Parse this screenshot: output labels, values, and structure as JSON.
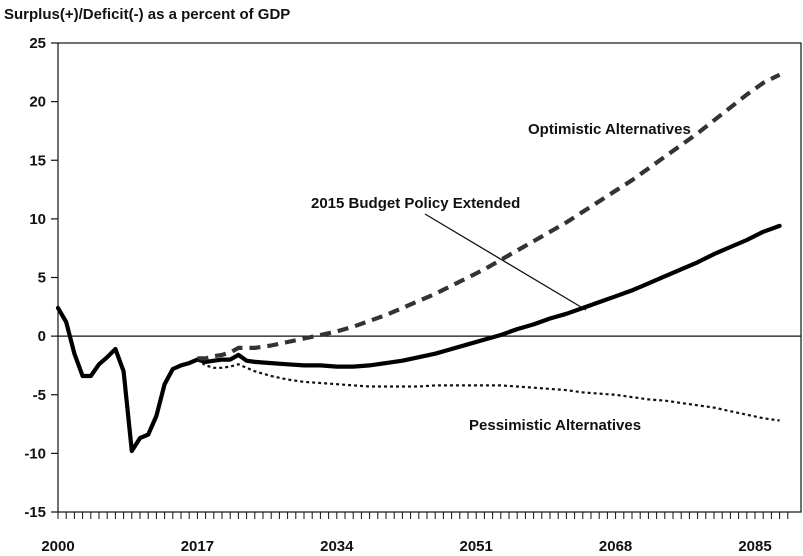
{
  "chart_data": {
    "type": "line",
    "title": "Surplus(+)/Deficit(-) as a percent of GDP",
    "xlabel": "",
    "ylabel": "",
    "xlim": [
      2000,
      2089
    ],
    "ylim": [
      -15,
      25
    ],
    "yticks": [
      25,
      20,
      15,
      10,
      5,
      0,
      -5,
      -10,
      -15
    ],
    "xtick_labels": [
      2000,
      2017,
      2034,
      2051,
      2068,
      2085
    ],
    "minor_xtick_step": 1,
    "zero_line": true,
    "grid": false,
    "legend": "none",
    "annotations": [
      {
        "text": "Optimistic Alternatives"
      },
      {
        "text": "2015 Budget Policy Extended"
      },
      {
        "text": "Pessimistic Alternatives"
      }
    ],
    "series": [
      {
        "id": "budget_policy_extended",
        "style": "solid-thick",
        "color": "#000000",
        "points": [
          [
            2000,
            2.4
          ],
          [
            2001,
            1.2
          ],
          [
            2002,
            -1.5
          ],
          [
            2003,
            -3.4
          ],
          [
            2004,
            -3.4
          ],
          [
            2005,
            -2.4
          ],
          [
            2006,
            -1.8
          ],
          [
            2007,
            -1.1
          ],
          [
            2008,
            -3.0
          ],
          [
            2009,
            -9.8
          ],
          [
            2010,
            -8.7
          ],
          [
            2011,
            -8.4
          ],
          [
            2012,
            -6.8
          ],
          [
            2013,
            -4.1
          ],
          [
            2014,
            -2.8
          ],
          [
            2015,
            -2.5
          ],
          [
            2016,
            -2.3
          ],
          [
            2017,
            -2.0
          ],
          [
            2018,
            -2.2
          ],
          [
            2019,
            -2.1
          ],
          [
            2020,
            -2.0
          ],
          [
            2021,
            -2.0
          ],
          [
            2022,
            -1.6
          ],
          [
            2023,
            -2.1
          ],
          [
            2024,
            -2.2
          ],
          [
            2026,
            -2.3
          ],
          [
            2028,
            -2.4
          ],
          [
            2030,
            -2.5
          ],
          [
            2032,
            -2.5
          ],
          [
            2034,
            -2.6
          ],
          [
            2036,
            -2.6
          ],
          [
            2038,
            -2.5
          ],
          [
            2040,
            -2.3
          ],
          [
            2042,
            -2.1
          ],
          [
            2044,
            -1.8
          ],
          [
            2046,
            -1.5
          ],
          [
            2048,
            -1.1
          ],
          [
            2050,
            -0.7
          ],
          [
            2052,
            -0.3
          ],
          [
            2054,
            0.1
          ],
          [
            2056,
            0.6
          ],
          [
            2058,
            1.0
          ],
          [
            2060,
            1.5
          ],
          [
            2062,
            1.9
          ],
          [
            2064,
            2.4
          ],
          [
            2066,
            2.9
          ],
          [
            2068,
            3.4
          ],
          [
            2070,
            3.9
          ],
          [
            2072,
            4.5
          ],
          [
            2074,
            5.1
          ],
          [
            2076,
            5.7
          ],
          [
            2078,
            6.3
          ],
          [
            2080,
            7.0
          ],
          [
            2082,
            7.6
          ],
          [
            2084,
            8.2
          ],
          [
            2086,
            8.9
          ],
          [
            2088,
            9.4
          ]
        ]
      },
      {
        "id": "optimistic_alternatives",
        "style": "dashed-thick",
        "color": "#333333",
        "points": [
          [
            2017,
            -1.9
          ],
          [
            2018,
            -1.9
          ],
          [
            2019,
            -1.7
          ],
          [
            2020,
            -1.6
          ],
          [
            2021,
            -1.4
          ],
          [
            2022,
            -1.0
          ],
          [
            2024,
            -1.0
          ],
          [
            2026,
            -0.8
          ],
          [
            2028,
            -0.5
          ],
          [
            2030,
            -0.2
          ],
          [
            2032,
            0.1
          ],
          [
            2034,
            0.4
          ],
          [
            2036,
            0.8
          ],
          [
            2038,
            1.3
          ],
          [
            2040,
            1.8
          ],
          [
            2042,
            2.4
          ],
          [
            2044,
            3.0
          ],
          [
            2046,
            3.6
          ],
          [
            2048,
            4.3
          ],
          [
            2050,
            5.0
          ],
          [
            2052,
            5.7
          ],
          [
            2054,
            6.5
          ],
          [
            2056,
            7.3
          ],
          [
            2058,
            8.1
          ],
          [
            2060,
            8.9
          ],
          [
            2062,
            9.7
          ],
          [
            2064,
            10.6
          ],
          [
            2066,
            11.5
          ],
          [
            2068,
            12.4
          ],
          [
            2070,
            13.3
          ],
          [
            2072,
            14.3
          ],
          [
            2074,
            15.3
          ],
          [
            2076,
            16.3
          ],
          [
            2078,
            17.3
          ],
          [
            2080,
            18.4
          ],
          [
            2082,
            19.5
          ],
          [
            2084,
            20.6
          ],
          [
            2086,
            21.6
          ],
          [
            2088,
            22.3
          ]
        ]
      },
      {
        "id": "pessimistic_alternatives",
        "style": "dotted",
        "color": "#111111",
        "points": [
          [
            2017,
            -2.0
          ],
          [
            2018,
            -2.5
          ],
          [
            2019,
            -2.7
          ],
          [
            2020,
            -2.7
          ],
          [
            2021,
            -2.6
          ],
          [
            2022,
            -2.4
          ],
          [
            2024,
            -3.0
          ],
          [
            2026,
            -3.4
          ],
          [
            2028,
            -3.7
          ],
          [
            2030,
            -3.9
          ],
          [
            2032,
            -4.0
          ],
          [
            2034,
            -4.1
          ],
          [
            2036,
            -4.2
          ],
          [
            2038,
            -4.3
          ],
          [
            2040,
            -4.3
          ],
          [
            2042,
            -4.3
          ],
          [
            2044,
            -4.3
          ],
          [
            2046,
            -4.2
          ],
          [
            2048,
            -4.2
          ],
          [
            2050,
            -4.2
          ],
          [
            2052,
            -4.2
          ],
          [
            2054,
            -4.2
          ],
          [
            2056,
            -4.3
          ],
          [
            2058,
            -4.4
          ],
          [
            2060,
            -4.5
          ],
          [
            2062,
            -4.6
          ],
          [
            2064,
            -4.8
          ],
          [
            2066,
            -4.9
          ],
          [
            2068,
            -5.0
          ],
          [
            2070,
            -5.2
          ],
          [
            2072,
            -5.4
          ],
          [
            2074,
            -5.5
          ],
          [
            2076,
            -5.7
          ],
          [
            2078,
            -5.9
          ],
          [
            2080,
            -6.1
          ],
          [
            2082,
            -6.4
          ],
          [
            2084,
            -6.7
          ],
          [
            2086,
            -7.0
          ],
          [
            2088,
            -7.2
          ]
        ]
      }
    ]
  }
}
